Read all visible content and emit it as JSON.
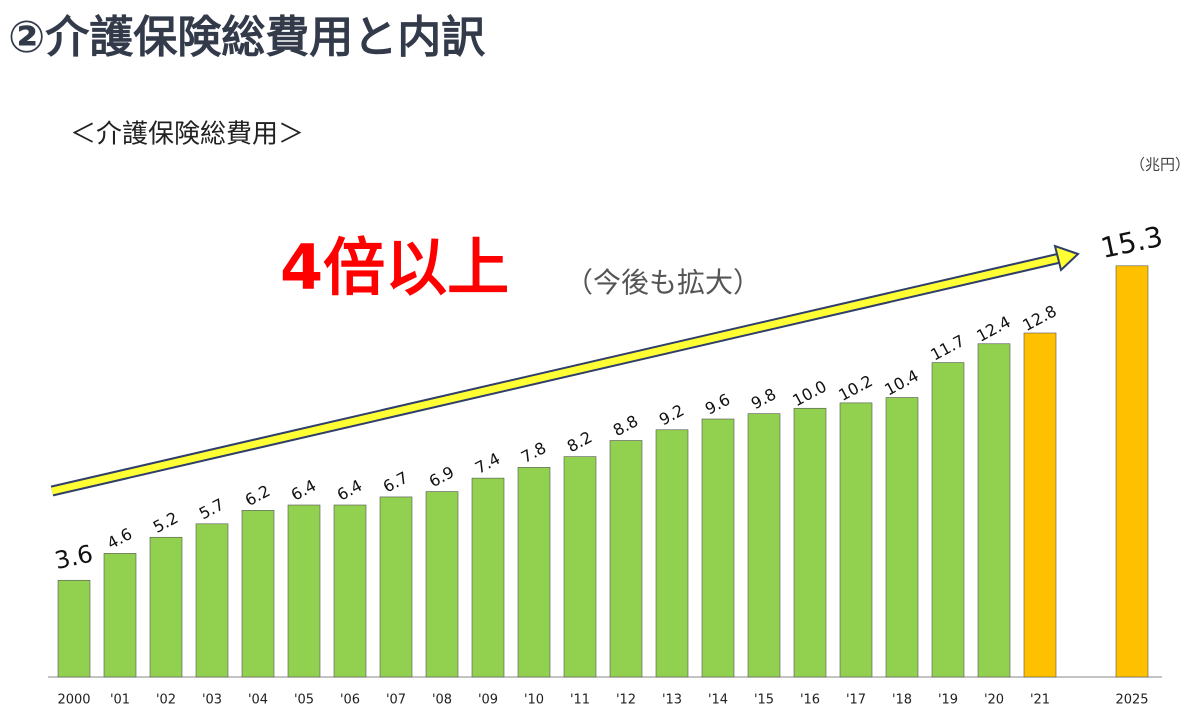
{
  "chart_data": {
    "type": "bar",
    "title": "②介護保険総費用と内訳",
    "subtitle": "＜介護保険総費用＞",
    "unit_label": "（兆円）",
    "annotation": "4倍以上",
    "annotation_note": "（今後も拡大）",
    "categories": [
      "2000",
      "'01",
      "'02",
      "'03",
      "'04",
      "'05",
      "'06",
      "'07",
      "'08",
      "'09",
      "'10",
      "'11",
      "'12",
      "'13",
      "'14",
      "'15",
      "'16",
      "'17",
      "'18",
      "'19",
      "'20",
      "'21",
      null,
      "2025"
    ],
    "values": [
      3.6,
      4.6,
      5.2,
      5.7,
      6.2,
      6.4,
      6.4,
      6.7,
      6.9,
      7.4,
      7.8,
      8.2,
      8.8,
      9.2,
      9.6,
      9.8,
      10.0,
      10.2,
      10.4,
      11.7,
      12.4,
      12.8,
      null,
      15.3
    ],
    "value_labels": [
      "3.6",
      "4.6",
      "5.2",
      "5.7",
      "6.2",
      "6.4",
      "6.4",
      "6.7",
      "6.9",
      "7.4",
      "7.8",
      "8.2",
      "8.8",
      "9.2",
      "9.6",
      "9.8",
      "10.0",
      "10.2",
      "10.4",
      "11.7",
      "12.4",
      "12.8",
      null,
      "15.3"
    ],
    "colors": [
      "#92d050",
      "#92d050",
      "#92d050",
      "#92d050",
      "#92d050",
      "#92d050",
      "#92d050",
      "#92d050",
      "#92d050",
      "#92d050",
      "#92d050",
      "#92d050",
      "#92d050",
      "#92d050",
      "#92d050",
      "#92d050",
      "#92d050",
      "#92d050",
      "#92d050",
      "#92d050",
      "#92d050",
      "#ffc000",
      null,
      "#ffc000"
    ],
    "ylim": [
      0,
      16
    ],
    "grid": false
  }
}
